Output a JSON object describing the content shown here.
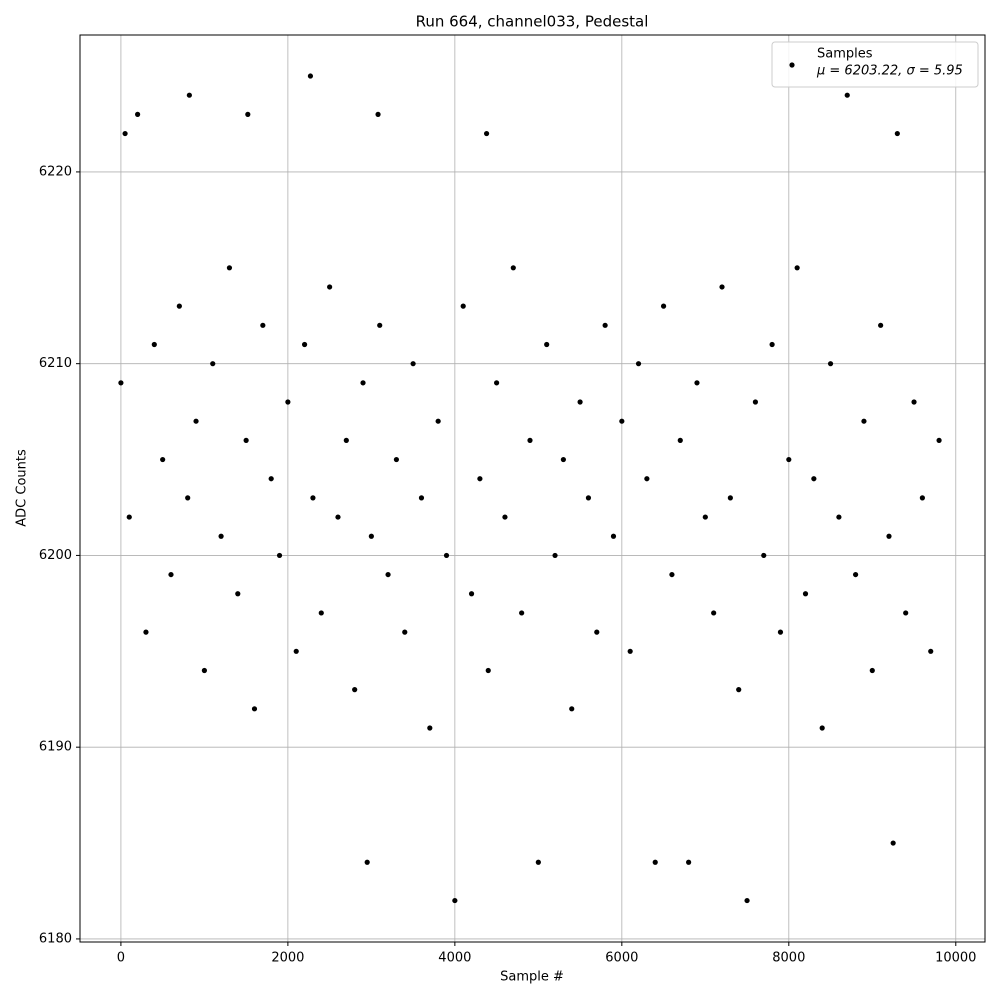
{
  "chart_data": {
    "type": "scatter",
    "title": "Run 664, channel033, Pedestal",
    "x_label": "Sample #",
    "y_label": "ADC Counts",
    "xlim": [
      -490,
      10350
    ],
    "ylim": [
      6179.84,
      6227.14
    ],
    "xticks": [
      0,
      2000,
      4000,
      6000,
      8000,
      10000
    ],
    "yticks": [
      6180,
      6190,
      6200,
      6210,
      6220
    ],
    "grid": true,
    "legend": "upper right",
    "annotation": "μ = 6203.22, σ = 5.95",
    "series": [
      {
        "name": "Samples",
        "color": "#000000",
        "x": [
          0,
          100,
          200,
          300,
          400,
          500,
          600,
          700,
          800,
          900,
          1000,
          1100,
          1200,
          1300,
          1400,
          1500,
          1600,
          1700,
          1800,
          1900,
          2000,
          2100,
          2200,
          2300,
          2400,
          2500,
          2600,
          2700,
          2800,
          2900,
          3000,
          3100,
          3200,
          3300,
          3400,
          3500,
          3600,
          3700,
          3800,
          3900,
          4000,
          4100,
          4200,
          4300,
          4400,
          4500,
          4600,
          4700,
          4800,
          4900,
          5000,
          5100,
          5200,
          5300,
          5400,
          5500,
          5600,
          5700,
          5800,
          5900,
          6000,
          6100,
          6200,
          6300,
          6400,
          6500,
          6600,
          6700,
          6800,
          6900,
          7000,
          7100,
          7200,
          7300,
          7400,
          7500,
          7600,
          7700,
          7800,
          7900,
          8000,
          8100,
          8200,
          8300,
          8400,
          8500,
          8600,
          8700,
          8800,
          8900,
          9000,
          9100,
          9200,
          9300,
          9400,
          9500,
          9600,
          9700,
          9800,
          50,
          820,
          1520,
          2270,
          2950,
          3080,
          4380,
          9250
        ],
        "values": [
          6209,
          6202,
          6223,
          6196,
          6211,
          6205,
          6199,
          6213,
          6203,
          6207,
          6194,
          6210,
          6201,
          6215,
          6198,
          6206,
          6192,
          6212,
          6204,
          6200,
          6208,
          6195,
          6211,
          6203,
          6197,
          6214,
          6202,
          6206,
          6193,
          6209,
          6201,
          6212,
          6199,
          6205,
          6196,
          6210,
          6203,
          6191,
          6207,
          6200,
          6182,
          6213,
          6198,
          6204,
          6194,
          6209,
          6202,
          6215,
          6197,
          6206,
          6184,
          6211,
          6200,
          6205,
          6192,
          6208,
          6203,
          6196,
          6212,
          6201,
          6207,
          6195,
          6210,
          6204,
          6184,
          6213,
          6199,
          6206,
          6184,
          6209,
          6202,
          6197,
          6214,
          6203,
          6193,
          6182,
          6208,
          6200,
          6211,
          6196,
          6205,
          6215,
          6198,
          6204,
          6191,
          6210,
          6202,
          6224,
          6199,
          6207,
          6194,
          6212,
          6201,
          6222,
          6197,
          6208,
          6203,
          6195,
          6206,
          6222,
          6224,
          6223,
          6225,
          6184,
          6223,
          6222,
          6185
        ]
      }
    ]
  }
}
